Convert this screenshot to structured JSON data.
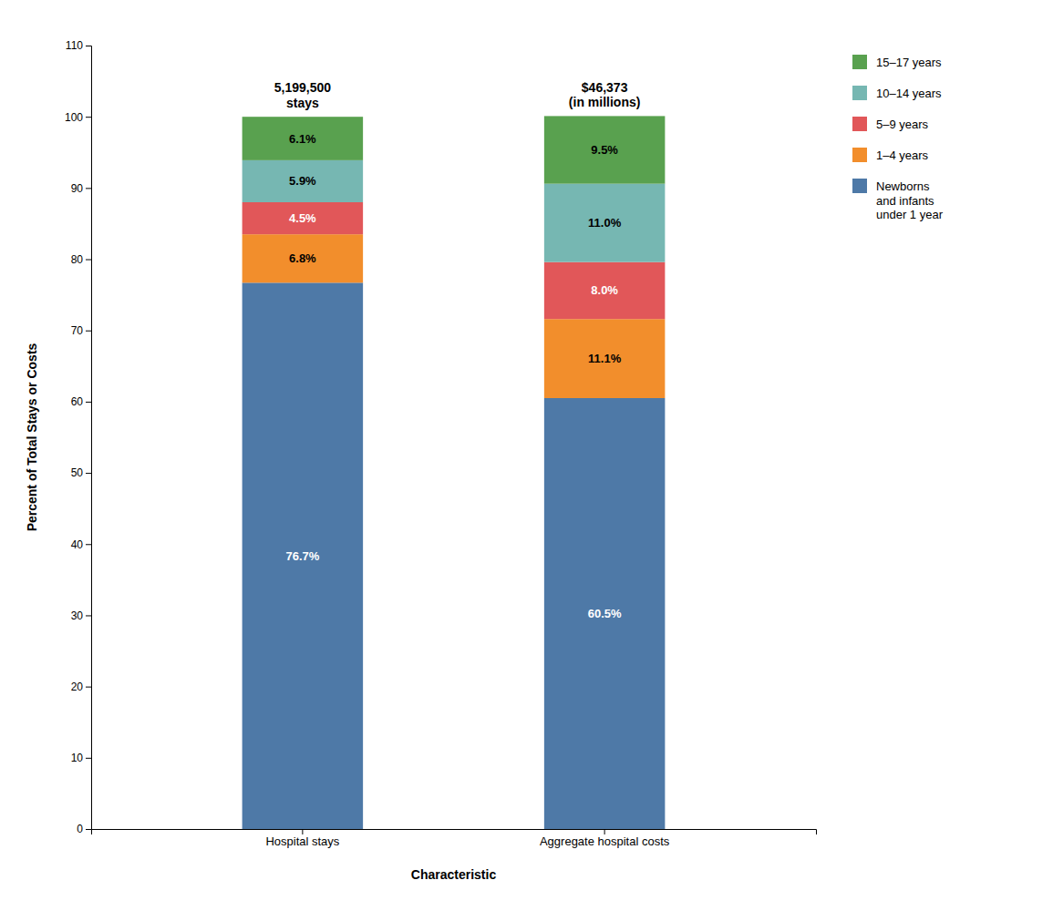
{
  "chart_data": {
    "type": "bar",
    "stacked": true,
    "categories": [
      "Hospital stays",
      "Aggregate hospital costs"
    ],
    "annotations": [
      "5,199,500\nstays",
      "$46,373\n(in millions)"
    ],
    "series": [
      {
        "name": "Newborns\nand infants\nunder 1 year",
        "values": [
          76.7,
          60.5
        ],
        "value_labels": [
          "76.7%",
          "60.5%"
        ]
      },
      {
        "name": "1–4 years",
        "values": [
          6.8,
          11.1
        ],
        "value_labels": [
          "6.8%",
          "11.1%"
        ]
      },
      {
        "name": "5–9 years",
        "values": [
          4.5,
          8.0
        ],
        "value_labels": [
          "4.5%",
          "8.0%"
        ]
      },
      {
        "name": "10–14 years",
        "values": [
          5.9,
          11.0
        ],
        "value_labels": [
          "5.9%",
          "11.0%"
        ]
      },
      {
        "name": "15–17 years",
        "values": [
          6.1,
          9.5
        ],
        "value_labels": [
          "6.1%",
          "9.5%"
        ]
      }
    ],
    "xlabel": "Characteristic",
    "ylabel": "Percent of Total Stays or Costs",
    "ylim": [
      0,
      110
    ],
    "yticks": [
      0,
      10,
      20,
      30,
      40,
      50,
      60,
      70,
      80,
      90,
      100,
      110
    ],
    "grid": false,
    "legend": "right",
    "data_labels": true
  }
}
